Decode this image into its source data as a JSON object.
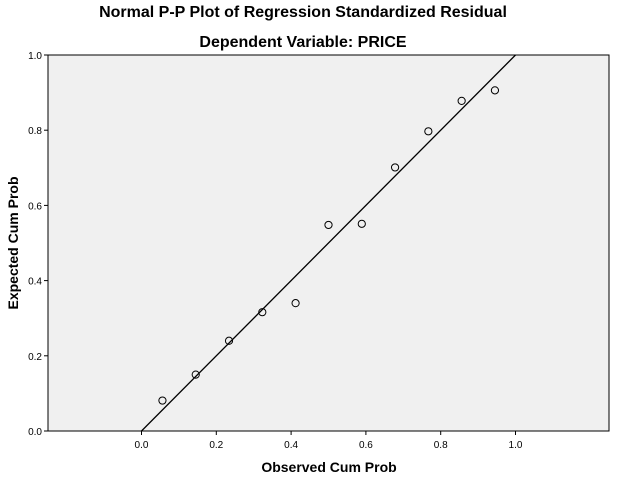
{
  "chart_data": {
    "type": "scatter",
    "title": "Normal P-P Plot of Regression Standardized Residual",
    "subtitle": "Dependent Variable: PRICE",
    "xlabel": "Observed Cum Prob",
    "ylabel": "Expected Cum Prob",
    "xlim": [
      -0.25,
      1.25
    ],
    "ylim": [
      0.0,
      1.0
    ],
    "x_ticks": [
      0.0,
      0.2,
      0.4,
      0.6,
      0.8,
      1.0
    ],
    "x_tick_labels": [
      "0.0",
      "0.2",
      "0.4",
      "0.6",
      "0.8",
      "1.0"
    ],
    "y_ticks": [
      0.0,
      0.2,
      0.4,
      0.6,
      0.8,
      1.0
    ],
    "y_tick_labels": [
      "0.0",
      "0.2",
      "0.4",
      "0.6",
      "0.8",
      "1.0"
    ],
    "grid": false,
    "reference_line": {
      "from": [
        0.0,
        0.0
      ],
      "to": [
        1.0,
        1.0
      ]
    },
    "points": [
      {
        "x": 0.056,
        "y": 0.081
      },
      {
        "x": 0.145,
        "y": 0.15
      },
      {
        "x": 0.234,
        "y": 0.24
      },
      {
        "x": 0.323,
        "y": 0.316
      },
      {
        "x": 0.412,
        "y": 0.34
      },
      {
        "x": 0.5,
        "y": 0.548
      },
      {
        "x": 0.589,
        "y": 0.551
      },
      {
        "x": 0.678,
        "y": 0.701
      },
      {
        "x": 0.767,
        "y": 0.797
      },
      {
        "x": 0.856,
        "y": 0.878
      },
      {
        "x": 0.945,
        "y": 0.906
      }
    ],
    "colors": {
      "plot_background": "#f0f0f0",
      "marker_stroke": "#000000",
      "line": "#000000"
    }
  }
}
